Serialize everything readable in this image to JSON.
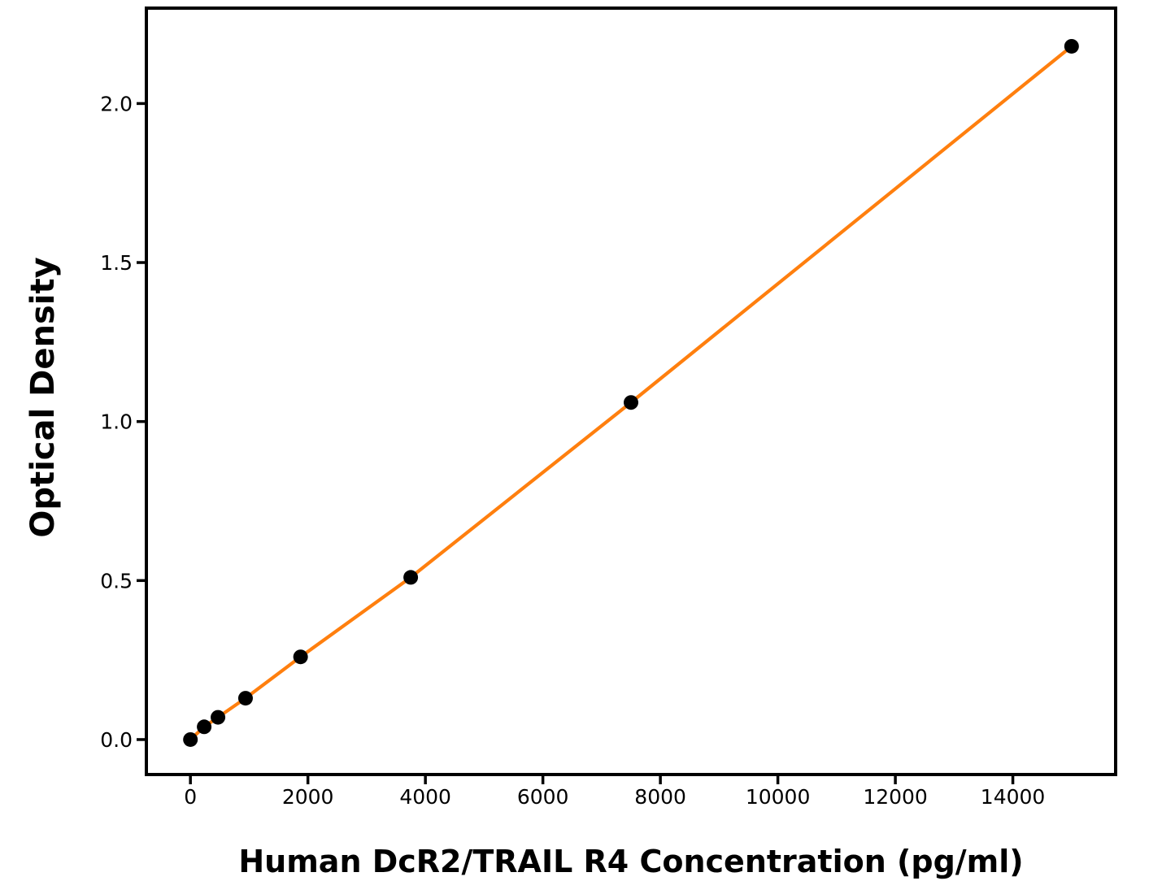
{
  "chart_data": {
    "type": "line",
    "xlabel": "Human DcR2/TRAIL R4 Concentration (pg/ml)",
    "ylabel": "Optical Density",
    "x": [
      0,
      234,
      469,
      938,
      1875,
      3750,
      7500,
      15000
    ],
    "y": [
      0.0,
      0.04,
      0.07,
      0.13,
      0.26,
      0.51,
      1.06,
      2.18
    ],
    "xticks": [
      0,
      2000,
      4000,
      6000,
      8000,
      10000,
      12000,
      14000
    ],
    "yticks": [
      0.0,
      0.5,
      1.0,
      1.5,
      2.0
    ],
    "xlim": [
      -750,
      15750
    ],
    "ylim": [
      -0.11,
      2.3
    ],
    "grid": false,
    "legend_position": "none",
    "line_color": "#ff7f0e",
    "marker_color": "#000000",
    "axis_color": "#000000"
  }
}
